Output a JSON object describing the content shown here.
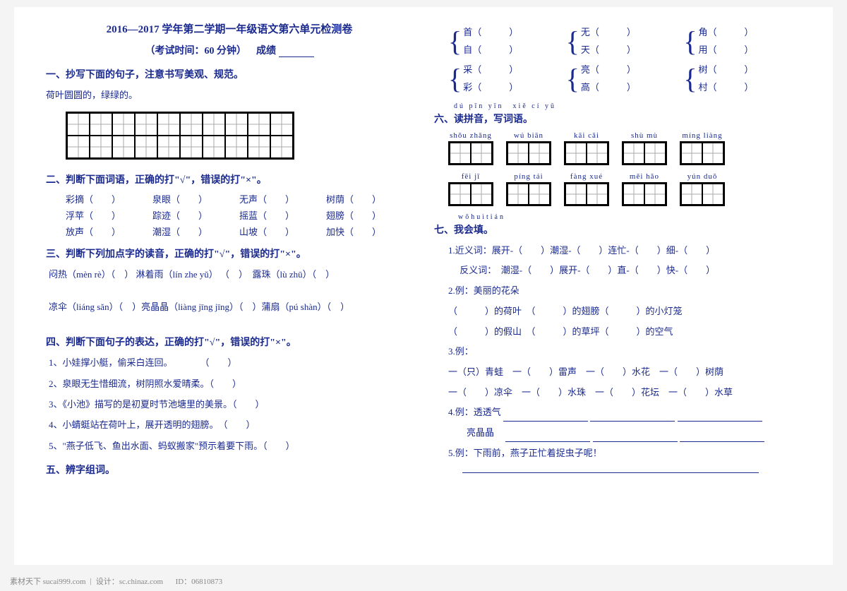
{
  "colors": {
    "text": "#1a2a8e",
    "bg": "#ffffff",
    "page_bg": "#f4f4f4",
    "grid_border": "#000000",
    "grid_line": "#aaaaaa"
  },
  "title": "2016—2017 学年第二学期一年级语文第六单元检测卷",
  "subtitle_prefix": "（考试时间：60 分钟）",
  "subtitle_score": "成绩",
  "sec1": {
    "heading": "一、抄写下面的句子，注意书写美观、规范。",
    "sentence": "荷叶圆圆的，绿绿的。",
    "cols": 10,
    "rows": 2
  },
  "sec2": {
    "heading": "二、判断下面词语，正确的打\"√\"，错误的打\"×\"。",
    "rows": [
      [
        "彩摘",
        "泉眼",
        "无声",
        "树荫"
      ],
      [
        "浮苹",
        "踪迹",
        "摇蓝",
        "翅膀"
      ],
      [
        "放声",
        "潮湿",
        "山坡",
        "加快"
      ]
    ]
  },
  "sec3": {
    "heading": "三、判断下列加点字的读音，正确的打\"√\"，错误的打\"×\"。",
    "line1_a": "闷热（mèn rè）（　）",
    "line1_b": "淋着雨（lín zhe yǔ）",
    "line1_c": "（　）　露珠（lù zhū）（　）",
    "line2": "凉伞（liáng sǎn）（　）亮晶晶（liàng jīng jīng）（　）蒲扇（pú shàn）（　）"
  },
  "sec4": {
    "heading": "四、判断下面句子的表达，正确的打\"√\"，错误的打\"×\"。",
    "items": [
      "1、小娃撑小艇，偷采白连回。　　　　（　　）",
      "2、泉眼无生惜细流，树阴照水爱晴柔。（　　）",
      "3、《小池》描写的是初夏时节池塘里的美景。（　　）",
      "4、小蜻蜓站在荷叶上，展开透明的翅膀。　（　　）",
      "5、\"燕子低飞、鱼出水面、蚂蚁搬家\"预示着要下雨。（　　）"
    ]
  },
  "sec5": {
    "heading": "五、辨字组词。",
    "groups": [
      [
        [
          "首",
          "自"
        ],
        [
          "无",
          "天"
        ],
        [
          "角",
          "用"
        ]
      ],
      [
        [
          "采",
          "彩"
        ],
        [
          "亮",
          "高"
        ],
        [
          "树",
          "村"
        ]
      ]
    ]
  },
  "sec6": {
    "pinyin_heading": "dú pīn yīn　xiě cí yǔ",
    "heading": "六、读拼音，写词语。",
    "row1": [
      "shǒu zhǎng",
      "wú biān",
      "kāi cǎi",
      "shù mù",
      "míng liàng"
    ],
    "row2": [
      "fēi jī",
      "píng tái",
      "fàng xué",
      "měi hǎo",
      "yún duǒ"
    ]
  },
  "sec7": {
    "pinyin_heading": "wǒhuìtián",
    "heading": "七、我会填。",
    "l1": "1.近义词：展开-（　　）潮湿-（　　）连忙-（　　）细-（　　）",
    "l1b": "　 反义词：　潮湿-（　　）展开-（　　）直-（　　）快-（　　）",
    "l2": "2.例：美丽的花朵",
    "l2a": "（　　　）的荷叶　（　　　）的翅膀（　　　）的小灯笼",
    "l2b": "（　　　）的假山　（　　　）的草坪（　　　）的空气",
    "l3": "3.例：",
    "l3a": "一（只）青蛙　一（　　）雷声　一（　　）水花　一（　　）树荫",
    "l3b": "一（　　）凉伞　一（　　）水珠　一（　　）花坛　一（　　）水草",
    "l4": "4.例：透透气",
    "l4_label": "亮晶晶",
    "l5": "5.例：下雨前，燕子正忙着捉虫子呢！"
  },
  "footer": {
    "site": "素材天下  sucai999.com",
    "sep": "|",
    "hosted": "设计：sc.chinaz.com",
    "tail": "ID：06810873"
  }
}
